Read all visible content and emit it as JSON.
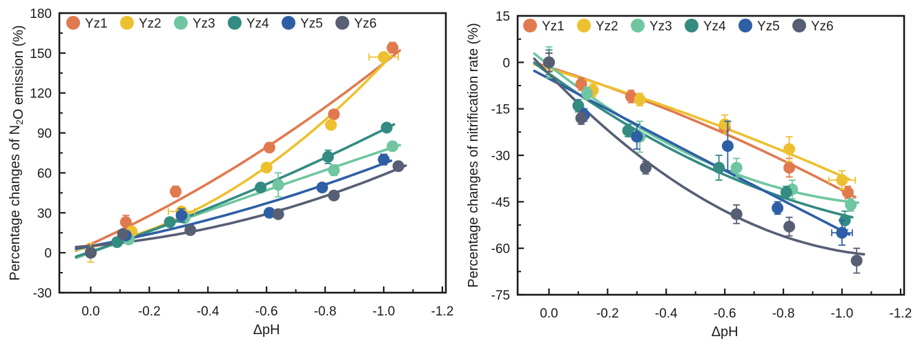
{
  "figure": {
    "background": "#ffffff",
    "axis_color": "#1a1a1a",
    "description": "Two-panel scatter chart of percentage changes of N2O emission and nitrification rate versus soil pH decrease (ΔpH) for six soils Yz1–Yz6"
  },
  "chart_data": [
    {
      "type": "scatter",
      "panel": "left",
      "title": "",
      "xlabel": "ΔpH",
      "ylabel": "Percentage changes of N2O emission (%)",
      "ylabel_parts": [
        {
          "text": "Percentage changes of N"
        },
        {
          "text": "2",
          "sub": true
        },
        {
          "text": "O emission (%)"
        }
      ],
      "x_ticks": [
        0.0,
        -0.2,
        -0.4,
        -0.6,
        -0.8,
        -1.0,
        -1.2
      ],
      "y_ticks": [
        180,
        150,
        120,
        90,
        60,
        30,
        0,
        -30
      ],
      "xlim": [
        0.107,
        -1.212
      ],
      "ylim": [
        180,
        -30
      ],
      "grid": false,
      "legend_position": "top-inside",
      "fit": "quadratic",
      "series": [
        {
          "name": "Yz1",
          "color": "#E1794F",
          "x": [
            0.0,
            -0.12,
            -0.29,
            -0.61,
            -0.83,
            -1.03
          ],
          "y": [
            0,
            23,
            46,
            79,
            104,
            154
          ],
          "ey": [
            3,
            5,
            4,
            3,
            3,
            4
          ]
        },
        {
          "name": "Yz2",
          "color": "#EDC02F",
          "x": [
            0.0,
            -0.14,
            -0.31,
            -0.6,
            -0.82,
            -1.0
          ],
          "y": [
            0,
            16,
            31,
            64,
            96,
            147
          ],
          "ey": [
            7,
            3,
            3,
            3,
            3,
            3
          ],
          "ex": [
            0,
            0,
            0.045,
            0,
            0,
            0.05
          ]
        },
        {
          "name": "Yz3",
          "color": "#6FC6A0",
          "x": [
            0.0,
            -0.13,
            -0.32,
            -0.64,
            -0.83,
            -1.03
          ],
          "y": [
            0,
            10,
            26,
            51,
            62,
            80
          ],
          "ey": [
            3,
            2,
            3,
            9,
            4,
            3
          ]
        },
        {
          "name": "Yz4",
          "color": "#338B82",
          "x": [
            0.0,
            -0.09,
            -0.27,
            -0.58,
            -0.81,
            -1.01
          ],
          "y": [
            0,
            8,
            23,
            49,
            72,
            94
          ],
          "ey": [
            3,
            2,
            2,
            3,
            5,
            3
          ]
        },
        {
          "name": "Yz5",
          "color": "#2E5FA5",
          "x": [
            0.0,
            -0.12,
            -0.31,
            -0.61,
            -0.79,
            -1.0
          ],
          "y": [
            0,
            13,
            28,
            30,
            49,
            70
          ],
          "ey": [
            3,
            3,
            5,
            3,
            3,
            4
          ]
        },
        {
          "name": "Yz6",
          "color": "#565F74",
          "x": [
            0.0,
            -0.11,
            -0.34,
            -0.64,
            -0.83,
            -1.05
          ],
          "y": [
            0,
            14,
            17,
            29,
            43,
            65
          ],
          "ey": [
            3,
            2,
            2,
            2,
            3,
            3
          ]
        }
      ]
    },
    {
      "type": "scatter",
      "panel": "right",
      "title": "",
      "xlabel": "ΔpH",
      "ylabel": "Percentage changes of nitrification rate (%)",
      "ylabel_parts": [
        {
          "text": "Percentage changes of nitrification rate (%)"
        }
      ],
      "x_ticks": [
        0.0,
        -0.2,
        -0.4,
        -0.6,
        -0.8,
        -1.0,
        -1.2
      ],
      "y_ticks": [
        15,
        0,
        -15,
        -30,
        -45,
        -60,
        -75
      ],
      "xlim": [
        0.107,
        -1.212
      ],
      "ylim": [
        15,
        -75
      ],
      "grid": false,
      "legend_position": "top-inside",
      "fit": "quadratic",
      "series": [
        {
          "name": "Yz1",
          "color": "#E1794F",
          "x": [
            0.0,
            -0.11,
            -0.28,
            -0.6,
            -0.82,
            -1.02
          ],
          "y": [
            0,
            -7,
            -11,
            -21,
            -34,
            -42
          ],
          "ey": [
            3,
            2,
            2,
            2,
            3,
            2
          ]
        },
        {
          "name": "Yz2",
          "color": "#EDC02F",
          "x": [
            0.0,
            -0.15,
            -0.31,
            -0.6,
            -0.82,
            -1.0
          ],
          "y": [
            0,
            -9,
            -12,
            -20,
            -28,
            -38
          ],
          "ey": [
            4,
            2,
            2,
            3,
            4,
            3
          ],
          "ex": [
            0,
            0,
            0,
            0,
            0,
            0.045
          ]
        },
        {
          "name": "Yz3",
          "color": "#6FC6A0",
          "x": [
            0.0,
            -0.13,
            -0.31,
            -0.64,
            -0.83,
            -1.03
          ],
          "y": [
            0,
            -10,
            -24,
            -34,
            -41,
            -46
          ],
          "ey": [
            5,
            2,
            5,
            3,
            3,
            2
          ]
        },
        {
          "name": "Yz4",
          "color": "#338B82",
          "x": [
            0.0,
            -0.1,
            -0.27,
            -0.58,
            -0.81,
            -1.01
          ],
          "y": [
            0,
            -14,
            -22,
            -34,
            -42,
            -51
          ],
          "ey": [
            4,
            2,
            2,
            4,
            2,
            3
          ]
        },
        {
          "name": "Yz5",
          "color": "#2E5FA5",
          "x": [
            0.0,
            -0.12,
            -0.3,
            -0.61,
            -0.78,
            -1.0
          ],
          "y": [
            0,
            -17,
            -24,
            -27,
            -47,
            -55
          ],
          "ey": [
            3,
            2,
            4,
            8,
            2,
            4
          ],
          "ex": [
            0,
            0,
            0,
            0,
            0,
            0.035
          ]
        },
        {
          "name": "Yz6",
          "color": "#565F74",
          "x": [
            0.0,
            -0.11,
            -0.33,
            -0.64,
            -0.82,
            -1.05
          ],
          "y": [
            0,
            -18,
            -34,
            -49,
            -53,
            -64
          ],
          "ey": [
            3,
            2,
            2,
            3,
            3,
            4
          ]
        }
      ]
    }
  ]
}
